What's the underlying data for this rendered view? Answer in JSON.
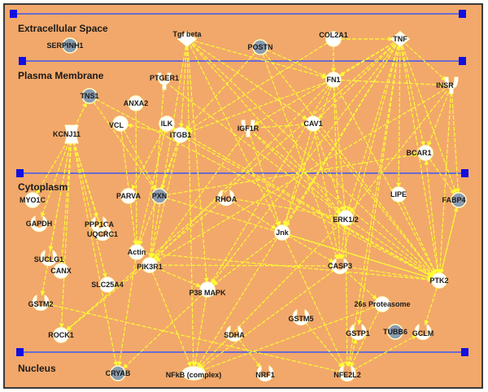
{
  "compartments": {
    "extracellular": "Extracellular Space",
    "plasma_membrane": "Plasma Membrane",
    "cytoplasm": "Cytoplasm",
    "nucleus": "Nucleus"
  },
  "colors": {
    "background": "#f2a86a",
    "edge": "#ffff33",
    "node_fill": "#ffffff",
    "node_gray": "#8a9bb0",
    "membrane_line": "#6b6bd0",
    "marker": "#1010e0"
  },
  "nodes": [
    {
      "id": "SERPINH1",
      "label": "SERPINH1",
      "shape": "circle-gray"
    },
    {
      "id": "TGFB",
      "label": "Tgf beta",
      "shape": "diamond"
    },
    {
      "id": "POSTN",
      "label": "POSTN",
      "shape": "circle-gray"
    },
    {
      "id": "COL2A1",
      "label": "COL2A1",
      "shape": "circle"
    },
    {
      "id": "TNF",
      "label": "TNF",
      "shape": "diamond"
    },
    {
      "id": "PTGER1",
      "label": "PTGER1",
      "shape": "receptor"
    },
    {
      "id": "FN1",
      "label": "FN1",
      "shape": "circle"
    },
    {
      "id": "INSR",
      "label": "INSR",
      "shape": "receptor"
    },
    {
      "id": "TNS1",
      "label": "TNS1",
      "shape": "circle-gray"
    },
    {
      "id": "ANXA2",
      "label": "ANXA2",
      "shape": "circle"
    },
    {
      "id": "VCL",
      "label": "VCL",
      "shape": "circle"
    },
    {
      "id": "ILK",
      "label": "ILK",
      "shape": "circle"
    },
    {
      "id": "IGF1R",
      "label": "IGF1R",
      "shape": "receptor"
    },
    {
      "id": "CAV1",
      "label": "CAV1",
      "shape": "circle"
    },
    {
      "id": "KCNJ11",
      "label": "KCNJ11",
      "shape": "channel"
    },
    {
      "id": "ITGB1",
      "label": "ITGB1",
      "shape": "circle"
    },
    {
      "id": "BCAR1",
      "label": "BCAR1",
      "shape": "circle"
    },
    {
      "id": "MYO1C",
      "label": "MYO1C",
      "shape": "circle"
    },
    {
      "id": "PARVA",
      "label": "PARVA",
      "shape": "circle"
    },
    {
      "id": "PXN",
      "label": "PXN",
      "shape": "circle-gray"
    },
    {
      "id": "RHOA",
      "label": "RHOA",
      "shape": "crescent"
    },
    {
      "id": "LIPE",
      "label": "LIPE",
      "shape": "circle"
    },
    {
      "id": "FABP4",
      "label": "FABP4",
      "shape": "circle-gray"
    },
    {
      "id": "GAPDH",
      "label": "GAPDH",
      "shape": "crescent"
    },
    {
      "id": "PPP1CA",
      "label": "PPP1CA",
      "shape": "crescent"
    },
    {
      "id": "UQCRC1",
      "label": "UQCRC1",
      "shape": "crescent"
    },
    {
      "id": "JNK",
      "label": "Jnk",
      "shape": "circle"
    },
    {
      "id": "ERK12",
      "label": "ERK1/2",
      "shape": "circle"
    },
    {
      "id": "SUCLG1",
      "label": "SUCLG1",
      "shape": "crescent"
    },
    {
      "id": "ACTIN",
      "label": "Actin",
      "shape": "circle"
    },
    {
      "id": "CANX",
      "label": "CANX",
      "shape": "circle"
    },
    {
      "id": "PIK3R1",
      "label": "PIK3R1",
      "shape": "circle"
    },
    {
      "id": "SLC25A4",
      "label": "SLC25A4",
      "shape": "circle"
    },
    {
      "id": "CASP3",
      "label": "CASP3",
      "shape": "crescent"
    },
    {
      "id": "PTK2",
      "label": "PTK2",
      "shape": "circle"
    },
    {
      "id": "GSTM2",
      "label": "GSTM2",
      "shape": "crescent"
    },
    {
      "id": "P38MAPK",
      "label": "P38 MAPK",
      "shape": "circle"
    },
    {
      "id": "GSTM5",
      "label": "GSTM5",
      "shape": "crescent"
    },
    {
      "id": "PROTEASOME",
      "label": "26s Proteasome",
      "shape": "circle"
    },
    {
      "id": "ROCK1",
      "label": "ROCK1",
      "shape": "circle"
    },
    {
      "id": "SDHA",
      "label": "SDHA",
      "shape": "crescent"
    },
    {
      "id": "GSTP1",
      "label": "GSTP1",
      "shape": "crescent"
    },
    {
      "id": "TUBB6",
      "label": "TUBB6",
      "shape": "circle-gray"
    },
    {
      "id": "GCLM",
      "label": "GCLM",
      "shape": "crescent"
    },
    {
      "id": "CRYAB",
      "label": "CRYAB",
      "shape": "circle-gray"
    },
    {
      "id": "NFKB",
      "label": "NFkB (complex)",
      "shape": "complex"
    },
    {
      "id": "NRF1",
      "label": "NRF1",
      "shape": "crescent"
    },
    {
      "id": "NFE2L2",
      "label": "NFE2L2",
      "shape": "crescent"
    }
  ],
  "edges": [
    [
      "TGFB",
      "FN1"
    ],
    [
      "TGFB",
      "JNK"
    ],
    [
      "TGFB",
      "P38MAPK"
    ],
    [
      "TGFB",
      "ERK12"
    ],
    [
      "TGFB",
      "CAV1"
    ],
    [
      "TGFB",
      "PTK2"
    ],
    [
      "TGFB",
      "NFKB"
    ],
    [
      "TGFB",
      "ITGB1"
    ],
    [
      "TGFB",
      "PIK3R1"
    ],
    [
      "POSTN",
      "FN1"
    ],
    [
      "POSTN",
      "PTK2"
    ],
    [
      "POSTN",
      "ITGB1"
    ],
    [
      "POSTN",
      "CASP3"
    ],
    [
      "TNF",
      "FN1"
    ],
    [
      "TNF",
      "INSR"
    ],
    [
      "TNF",
      "JNK"
    ],
    [
      "TNF",
      "ERK12"
    ],
    [
      "TNF",
      "CASP3"
    ],
    [
      "TNF",
      "NFKB"
    ],
    [
      "TNF",
      "CAV1"
    ],
    [
      "TNF",
      "P38MAPK"
    ],
    [
      "TNF",
      "PTK2"
    ],
    [
      "TNF",
      "BCAR1"
    ],
    [
      "TNF",
      "FABP4"
    ],
    [
      "TNF",
      "LIPE"
    ],
    [
      "TNF",
      "IGF1R"
    ],
    [
      "TNF",
      "ROCK1"
    ],
    [
      "TNF",
      "GSTP1"
    ],
    [
      "TNF",
      "NFE2L2"
    ],
    [
      "COL2A1",
      "TNF"
    ],
    [
      "COL2A1",
      "FN1"
    ],
    [
      "COL2A1",
      "ITGB1"
    ],
    [
      "FN1",
      "PTK2"
    ],
    [
      "FN1",
      "ITGB1"
    ],
    [
      "FN1",
      "ERK12"
    ],
    [
      "FN1",
      "JNK"
    ],
    [
      "FN1",
      "CASP3"
    ],
    [
      "FN1",
      "INSR"
    ],
    [
      "FN1",
      "PIK3R1"
    ],
    [
      "FN1",
      "P38MAPK"
    ],
    [
      "INSR",
      "PTK2"
    ],
    [
      "INSR",
      "PIK3R1"
    ],
    [
      "INSR",
      "ERK12"
    ],
    [
      "INSR",
      "FABP4"
    ],
    [
      "INSR",
      "BCAR1"
    ],
    [
      "TNS1",
      "PTK2"
    ],
    [
      "TNS1",
      "PXN"
    ],
    [
      "ILK",
      "PARVA"
    ],
    [
      "ILK",
      "ITGB1"
    ],
    [
      "ILK",
      "PTK2"
    ],
    [
      "ILK",
      "ACTIN"
    ],
    [
      "IGF1R",
      "PIK3R1"
    ],
    [
      "IGF1R",
      "ERK12"
    ],
    [
      "IGF1R",
      "PTK2"
    ],
    [
      "IGF1R",
      "JNK"
    ],
    [
      "IGF1R",
      "CAV1"
    ],
    [
      "CAV1",
      "ERK12"
    ],
    [
      "CAV1",
      "PTK2"
    ],
    [
      "CAV1",
      "JNK"
    ],
    [
      "CAV1",
      "CASP3"
    ],
    [
      "ITGB1",
      "PXN"
    ],
    [
      "ITGB1",
      "PTK2"
    ],
    [
      "ITGB1",
      "PIK3R1"
    ],
    [
      "ITGB1",
      "ACTIN"
    ],
    [
      "ITGB1",
      "VCL"
    ],
    [
      "VCL",
      "ACTIN"
    ],
    [
      "VCL",
      "PXN"
    ],
    [
      "PTGER1",
      "ERK12"
    ],
    [
      "PTGER1",
      "PIK3R1"
    ],
    [
      "ANXA2",
      "ACTIN"
    ],
    [
      "KCNJ11",
      "MYO1C"
    ],
    [
      "KCNJ11",
      "GAPDH"
    ],
    [
      "KCNJ11",
      "SUCLG1"
    ],
    [
      "KCNJ11",
      "CANX"
    ],
    [
      "KCNJ11",
      "GSTM2"
    ],
    [
      "KCNJ11",
      "ROCK1"
    ],
    [
      "KCNJ11",
      "CRYAB"
    ],
    [
      "KCNJ11",
      "SLC25A4"
    ],
    [
      "KCNJ11",
      "PPP1CA"
    ],
    [
      "KCNJ11",
      "UQCRC1"
    ],
    [
      "KCNJ11",
      "TNS1"
    ],
    [
      "PXN",
      "PTK2"
    ],
    [
      "PXN",
      "BCAR1"
    ],
    [
      "RHOA",
      "ROCK1"
    ],
    [
      "RHOA",
      "JNK"
    ],
    [
      "RHOA",
      "ERK12"
    ],
    [
      "JNK",
      "CASP3"
    ],
    [
      "JNK",
      "NFE2L2"
    ],
    [
      "JNK",
      "PTK2"
    ],
    [
      "JNK",
      "P38MAPK"
    ],
    [
      "ERK12",
      "CASP3"
    ],
    [
      "ERK12",
      "PTK2"
    ],
    [
      "ERK12",
      "NFE2L2"
    ],
    [
      "ERK12",
      "NFKB"
    ],
    [
      "PIK3R1",
      "P38MAPK"
    ],
    [
      "PIK3R1",
      "CASP3"
    ],
    [
      "PIK3R1",
      "NFKB"
    ],
    [
      "CASP3",
      "PTK2"
    ],
    [
      "CASP3",
      "NFKB"
    ],
    [
      "CASP3",
      "PROTEASOME"
    ],
    [
      "PTK2",
      "GCLM"
    ],
    [
      "PTK2",
      "BCAR1"
    ],
    [
      "PTK2",
      "FABP4"
    ],
    [
      "P38MAPK",
      "NFKB"
    ],
    [
      "P38MAPK",
      "CRYAB"
    ],
    [
      "PROTEASOME",
      "NFKB"
    ],
    [
      "PROTEASOME",
      "NFE2L2"
    ],
    [
      "GSTM5",
      "NFE2L2"
    ],
    [
      "SDHA",
      "NRF1"
    ],
    [
      "NFE2L2",
      "GCLM"
    ],
    [
      "NFE2L2",
      "GSTP1"
    ],
    [
      "NFE2L2",
      "GSTM2"
    ],
    [
      "ACTIN",
      "PTK2"
    ],
    [
      "ACTIN",
      "CRYAB"
    ],
    [
      "FABP4",
      "PTK2"
    ],
    [
      "LIPE",
      "PTK2"
    ],
    [
      "BCAR1",
      "FABP4"
    ]
  ]
}
